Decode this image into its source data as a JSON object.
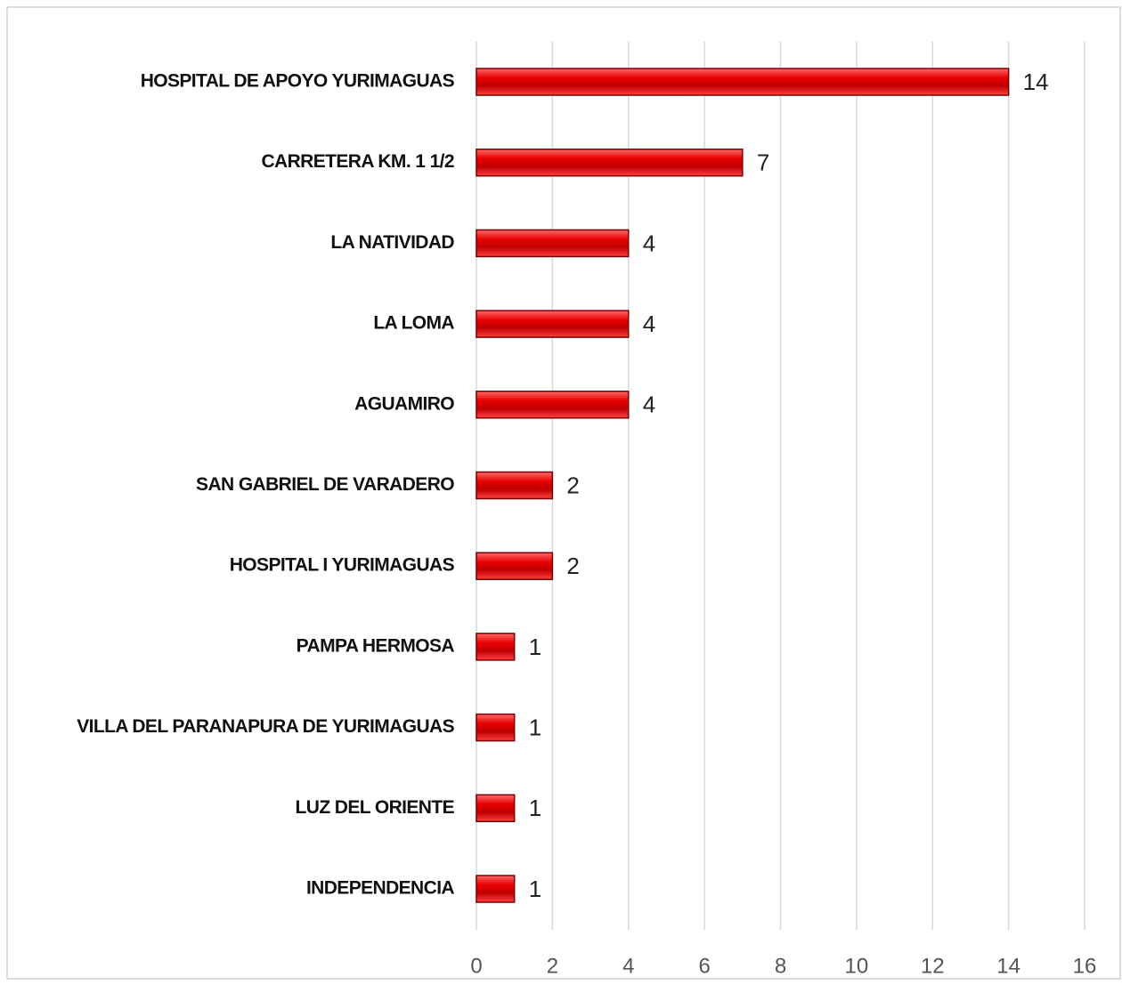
{
  "chart_data": {
    "type": "bar",
    "orientation": "horizontal",
    "categories": [
      "HOSPITAL DE APOYO YURIMAGUAS",
      "CARRETERA KM. 1 1/2",
      "LA NATIVIDAD",
      "LA LOMA",
      "AGUAMIRO",
      "SAN GABRIEL DE VARADERO",
      "HOSPITAL I YURIMAGUAS",
      "PAMPA HERMOSA",
      "VILLA DEL PARANAPURA DE YURIMAGUAS",
      "LUZ DEL ORIENTE",
      "INDEPENDENCIA"
    ],
    "values": [
      14,
      7,
      4,
      4,
      4,
      2,
      2,
      1,
      1,
      1,
      1
    ],
    "color": "#e00000",
    "xlim": [
      0,
      16
    ],
    "xticks": [
      0,
      2,
      4,
      6,
      8,
      10,
      12,
      14,
      16
    ],
    "grid": true
  }
}
